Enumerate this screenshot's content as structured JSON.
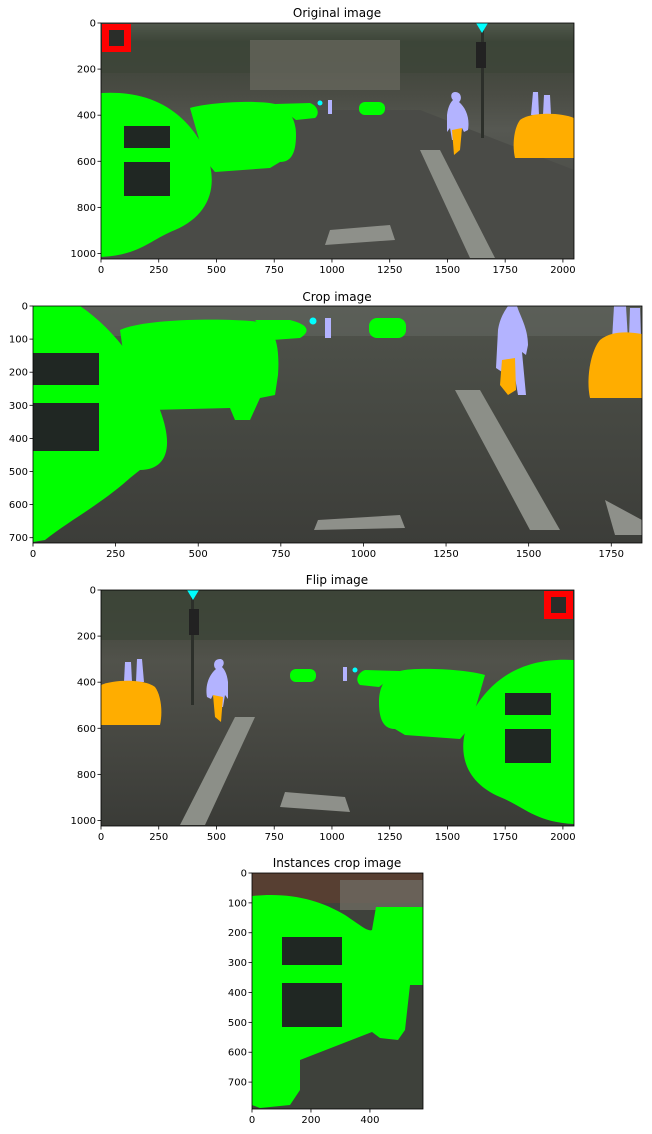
{
  "panels": [
    {
      "title": "Original image",
      "xticks": [
        0,
        250,
        500,
        750,
        1000,
        1250,
        1500,
        1750,
        2000
      ],
      "yticks": [
        0,
        200,
        400,
        600,
        800,
        1000
      ],
      "width": 2048,
      "height": 1024
    },
    {
      "title": "Crop image",
      "xticks": [
        0,
        250,
        500,
        750,
        1000,
        1250,
        1500,
        1750
      ],
      "yticks": [
        0,
        100,
        200,
        300,
        400,
        500,
        600,
        700
      ],
      "width": 1843,
      "height": 716
    },
    {
      "title": "Flip image",
      "xticks": [
        0,
        250,
        500,
        750,
        1000,
        1250,
        1500,
        1750,
        2000
      ],
      "yticks": [
        0,
        200,
        400,
        600,
        800,
        1000
      ],
      "width": 2048,
      "height": 1024
    },
    {
      "title": "Instances crop image",
      "xticks": [
        0,
        200,
        400
      ],
      "yticks": [
        0,
        100,
        200,
        300,
        400,
        500,
        600,
        700
      ],
      "width": 580,
      "height": 790
    }
  ],
  "colors": {
    "car": "#00ff00",
    "pedestrian": "#b3b3ff",
    "rider": "#ffad00",
    "traffic_light": "#00ffff",
    "highlight_box": "#ff0000",
    "road": "#4a4b47",
    "trees": "#3d4538",
    "buildings": "#6a6a60",
    "sky": "#c9ccc4",
    "dark_patch": "#202723"
  }
}
